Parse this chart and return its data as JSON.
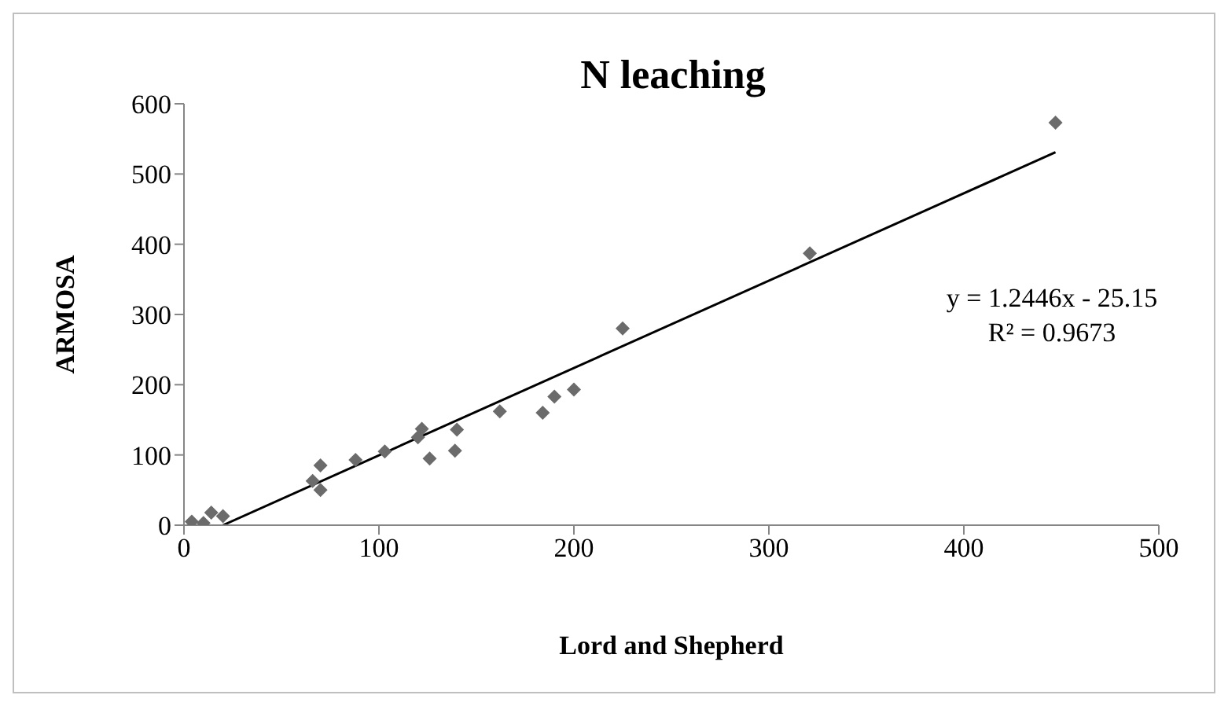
{
  "chart_data": {
    "type": "scatter",
    "title": "N leaching",
    "xlabel": "Lord and Shepherd",
    "ylabel": "ARMOSA",
    "xlim": [
      0,
      500
    ],
    "xticks": [
      0,
      100,
      200,
      300,
      400,
      500
    ],
    "ylim": [
      0,
      600
    ],
    "yticks": [
      0,
      100,
      200,
      300,
      400,
      500,
      600
    ],
    "marker": "diamond",
    "grid": false,
    "legend": false,
    "annotations": [
      "y = 1.2446x - 25.15",
      "R² = 0.9673"
    ],
    "series": [
      {
        "type": "scatter",
        "color": "#6b6b6b",
        "x": [
          4,
          10,
          14,
          20,
          66,
          70,
          70,
          88,
          103,
          120,
          122,
          126,
          139,
          140,
          162,
          184,
          190,
          200,
          225,
          321,
          447
        ],
        "values": [
          5,
          3,
          18,
          13,
          63,
          50,
          85,
          93,
          105,
          125,
          137,
          95,
          106,
          136,
          162,
          160,
          183,
          193,
          280,
          387,
          573
        ]
      },
      {
        "type": "line",
        "color": "#000000",
        "marker": "none",
        "x": [
          20,
          447
        ],
        "values": [
          0,
          531
        ]
      }
    ]
  }
}
